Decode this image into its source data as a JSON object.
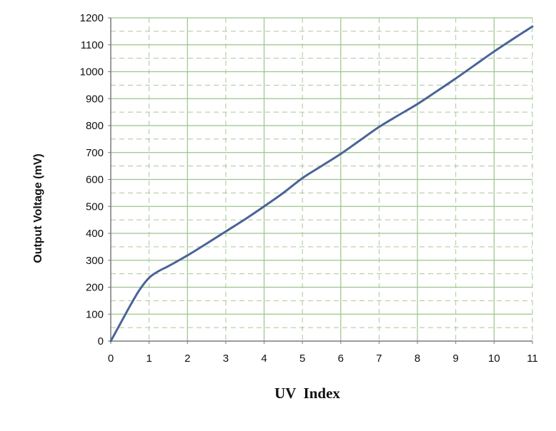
{
  "chart_data": {
    "type": "line",
    "xlabel": "UV  Index",
    "ylabel": "Output Voltage (mV)",
    "xlim": [
      0,
      11
    ],
    "ylim": [
      0,
      1200
    ],
    "x_ticks": [
      "0",
      "1",
      "2",
      "3",
      "4",
      "5",
      "6",
      "7",
      "8",
      "9",
      "10",
      "11"
    ],
    "y_ticks": [
      "0",
      "100",
      "200",
      "300",
      "400",
      "500",
      "600",
      "700",
      "800",
      "900",
      "1000",
      "1100",
      "1200"
    ],
    "grid": true,
    "line_color": "#4a6497",
    "grid_color_major": "#9bc48a",
    "grid_color_minor": "#a9c79a",
    "series": [
      {
        "x": [
          0,
          0.25,
          0.5,
          0.75,
          1,
          1.25,
          1.5,
          2,
          2.5,
          3,
          3.5,
          4,
          4.5,
          5,
          5.5,
          6,
          6.5,
          7,
          7.5,
          8,
          8.5,
          9,
          9.5,
          10,
          10.5,
          11
        ],
        "values": [
          0,
          65,
          130,
          190,
          235,
          260,
          278,
          318,
          362,
          407,
          452,
          500,
          550,
          605,
          650,
          695,
          745,
          795,
          838,
          880,
          927,
          975,
          1025,
          1075,
          1122,
          1168
        ]
      }
    ]
  }
}
